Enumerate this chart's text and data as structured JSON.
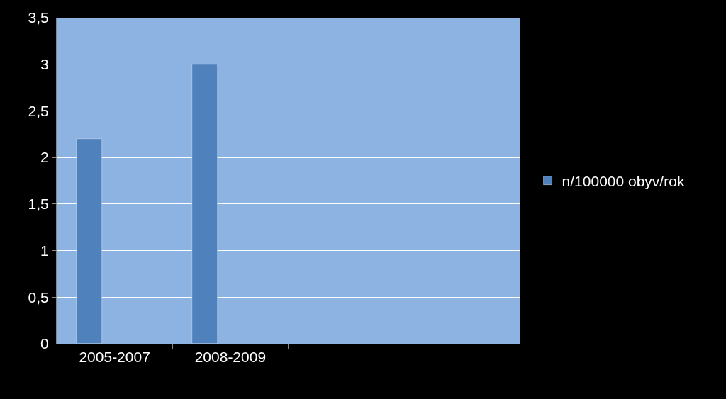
{
  "chart_data": {
    "type": "bar",
    "categories": [
      "2005-2007",
      "2008-2009",
      null,
      null
    ],
    "series": [
      {
        "name": "n/100000 obyv/rok",
        "color": "#4f81bd",
        "values": [
          2.2,
          3,
          null,
          null
        ]
      }
    ],
    "ylim": [
      0,
      3.5
    ],
    "yticks": [
      0,
      {
        "value": 0.5,
        "label": "0,5"
      },
      1,
      {
        "value": 1.5,
        "label": "1,5"
      },
      2,
      {
        "value": 2.5,
        "label": "2,5"
      },
      3,
      {
        "value": 3.5,
        "label": "3,5"
      }
    ],
    "grid": "y",
    "legend": "right"
  }
}
